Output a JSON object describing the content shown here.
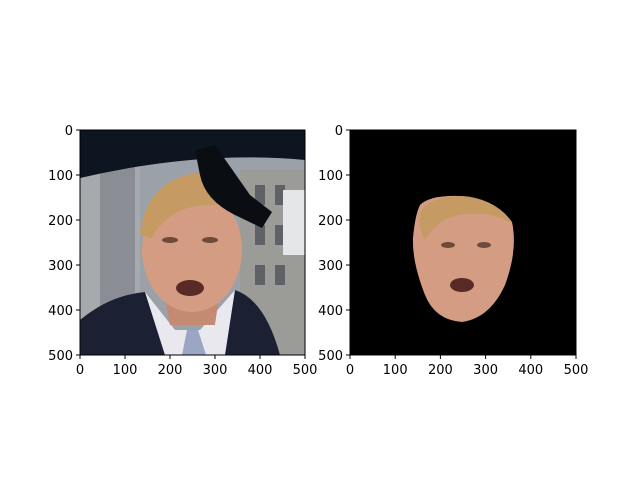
{
  "figure": {
    "background": "#ffffff",
    "axis_color": "#000000"
  },
  "chart_data": [
    {
      "type": "image",
      "description_of_content": "",
      "x": [
        0,
        100,
        200,
        300,
        400,
        500
      ],
      "y": [
        0,
        100,
        200,
        300,
        400,
        500
      ],
      "xlim": [
        0,
        500
      ],
      "ylim": [
        500,
        0
      ],
      "xticks": [
        "0",
        "100",
        "200",
        "300",
        "400",
        "500"
      ],
      "yticks": [
        "0",
        "100",
        "200",
        "300",
        "400",
        "500"
      ],
      "title": "",
      "xlabel": "",
      "ylabel": "",
      "grid": false,
      "colors": {
        "top_band": "#0d1520",
        "building": "#8b8f94",
        "suit": "#1c2033",
        "shirt": "#e8e8ee",
        "skin": "#d49d83",
        "hair": "#c69a63"
      }
    },
    {
      "type": "image",
      "description_of_content": "",
      "x": [
        0,
        100,
        200,
        300,
        400,
        500
      ],
      "y": [
        0,
        100,
        200,
        300,
        400,
        500
      ],
      "xlim": [
        0,
        500
      ],
      "ylim": [
        500,
        0
      ],
      "xticks": [
        "0",
        "100",
        "200",
        "300",
        "400",
        "500"
      ],
      "yticks": [
        "0",
        "100",
        "200",
        "300",
        "400",
        "500"
      ],
      "title": "",
      "xlabel": "",
      "ylabel": "",
      "grid": false,
      "colors": {
        "background": "#000000",
        "skin": "#d49d83",
        "hair": "#c69a63"
      }
    }
  ]
}
